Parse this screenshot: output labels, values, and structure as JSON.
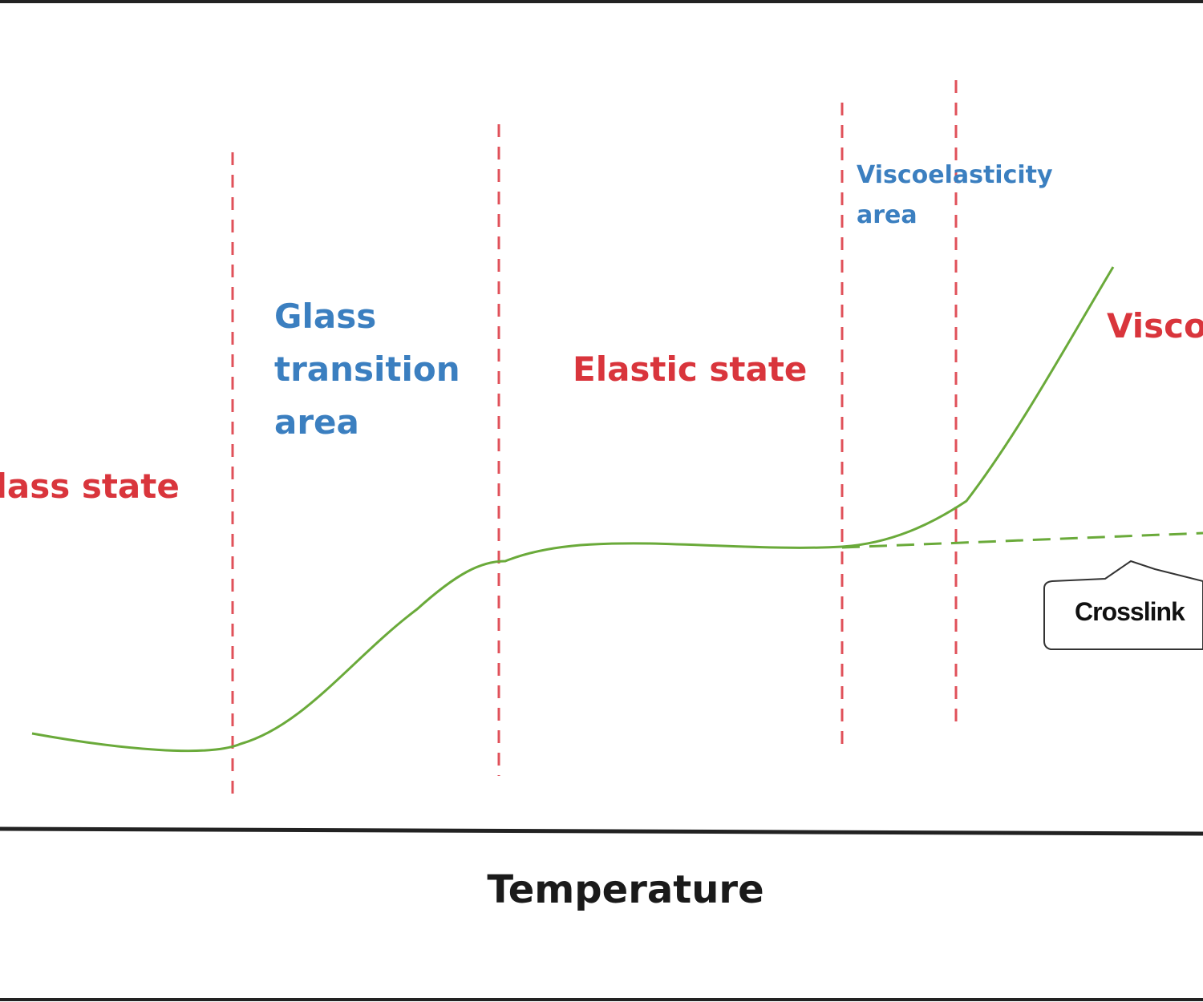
{
  "diagram": {
    "regions": {
      "glass_state": "Glass state",
      "glass_transition": "Glass\ntransition\narea",
      "elastic_state": "Elastic state",
      "viscoelasticity": "Viscoelasticity\narea",
      "viscous": "Visco"
    },
    "callout": "Crosslink",
    "x_axis_label": "Temperature",
    "colors": {
      "curve": "#6aaa3a",
      "divider": "#e0515a",
      "state_label": "#d9353c",
      "transition_label": "#3b7fc0",
      "frame": "#222222"
    }
  }
}
